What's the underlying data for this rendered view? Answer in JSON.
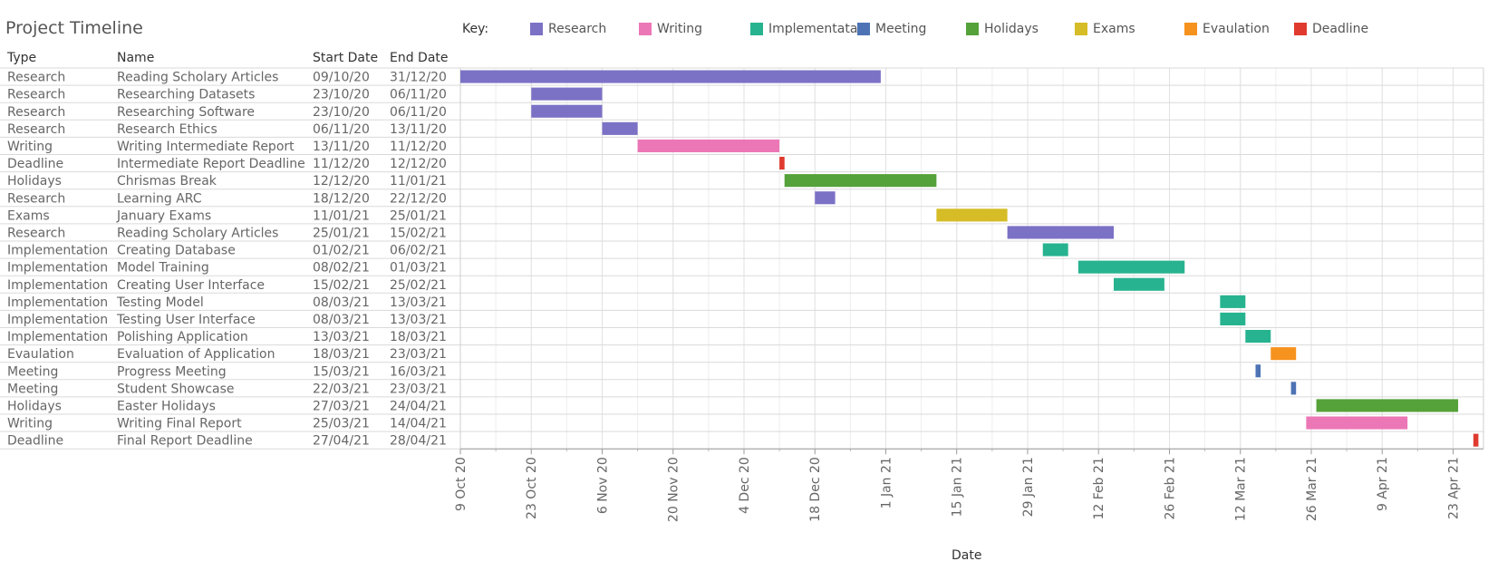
{
  "chart_data": {
    "type": "gantt",
    "title": "Project Timeline",
    "legend_title": "Key:",
    "legend_position": "top",
    "legend": [
      {
        "name": "Research",
        "color": "#7b72c6"
      },
      {
        "name": "Writing",
        "color": "#ec77b6"
      },
      {
        "name": "Implementata..",
        "color": "#27b38f"
      },
      {
        "name": "Meeting",
        "color": "#4d73b5"
      },
      {
        "name": "Holidays",
        "color": "#55a13a"
      },
      {
        "name": "Exams",
        "color": "#d6bc26"
      },
      {
        "name": "Evaulation",
        "color": "#f6921e"
      },
      {
        "name": "Deadline",
        "color": "#e03a2e"
      }
    ],
    "columns": [
      "Type",
      "Name",
      "Start Date",
      "End Date"
    ],
    "rows": [
      {
        "type": "Research",
        "name": "Reading Scholary Articles",
        "start": "09/10/20",
        "end": "31/12/20"
      },
      {
        "type": "Research",
        "name": "Researching Datasets",
        "start": "23/10/20",
        "end": "06/11/20"
      },
      {
        "type": "Research",
        "name": "Researching Software",
        "start": "23/10/20",
        "end": "06/11/20"
      },
      {
        "type": "Research",
        "name": "Research Ethics",
        "start": "06/11/20",
        "end": "13/11/20"
      },
      {
        "type": "Writing",
        "name": "Writing Intermediate Report",
        "start": "13/11/20",
        "end": "11/12/20"
      },
      {
        "type": "Deadline",
        "name": "Intermediate Report Deadline",
        "start": "11/12/20",
        "end": "12/12/20"
      },
      {
        "type": "Holidays",
        "name": "Chrismas Break",
        "start": "12/12/20",
        "end": "11/01/21"
      },
      {
        "type": "Research",
        "name": "Learning ARC",
        "start": "18/12/20",
        "end": "22/12/20"
      },
      {
        "type": "Exams",
        "name": "January Exams",
        "start": "11/01/21",
        "end": "25/01/21"
      },
      {
        "type": "Research",
        "name": "Reading Scholary Articles",
        "start": "25/01/21",
        "end": "15/02/21"
      },
      {
        "type": "Implementation",
        "name": "Creating Database",
        "start": "01/02/21",
        "end": "06/02/21"
      },
      {
        "type": "Implementation",
        "name": "Model Training",
        "start": "08/02/21",
        "end": "01/03/21"
      },
      {
        "type": "Implementation",
        "name": "Creating User Interface",
        "start": "15/02/21",
        "end": "25/02/21"
      },
      {
        "type": "Implementation",
        "name": "Testing Model",
        "start": "08/03/21",
        "end": "13/03/21"
      },
      {
        "type": "Implementation",
        "name": "Testing User Interface",
        "start": "08/03/21",
        "end": "13/03/21"
      },
      {
        "type": "Implementation",
        "name": "Polishing Application",
        "start": "13/03/21",
        "end": "18/03/21"
      },
      {
        "type": "Evaulation",
        "name": "Evaluation of Application",
        "start": "18/03/21",
        "end": "23/03/21"
      },
      {
        "type": "Meeting",
        "name": "Progress Meeting",
        "start": "15/03/21",
        "end": "16/03/21"
      },
      {
        "type": "Meeting",
        "name": "Student Showcase",
        "start": "22/03/21",
        "end": "23/03/21"
      },
      {
        "type": "Holidays",
        "name": "Easter Holidays",
        "start": "27/03/21",
        "end": "24/04/21"
      },
      {
        "type": "Writing",
        "name": "Writing Final Report",
        "start": "25/03/21",
        "end": "14/04/21"
      },
      {
        "type": "Deadline",
        "name": "Final Report Deadline",
        "start": "27/04/21",
        "end": "28/04/21"
      }
    ],
    "type_colors": {
      "Research": "#7b72c6",
      "Writing": "#ec77b6",
      "Implementation": "#27b38f",
      "Meeting": "#4d73b5",
      "Holidays": "#55a13a",
      "Exams": "#d6bc26",
      "Evaulation": "#f6921e",
      "Deadline": "#e03a2e"
    },
    "x_axis": {
      "label": "Date",
      "range": [
        "2020-10-09",
        "2021-04-29"
      ],
      "ticks": [
        "9 Oct 20",
        "23 Oct 20",
        "6 Nov 20",
        "20 Nov 20",
        "4 Dec 20",
        "18 Dec 20",
        "1 Jan 21",
        "15 Jan 21",
        "29 Jan 21",
        "12 Feb 21",
        "26 Feb 21",
        "12 Mar 21",
        "26 Mar 21",
        "9 Apr 21",
        "23 Apr 21"
      ],
      "minor_grid": "weekly",
      "grid": true
    }
  }
}
